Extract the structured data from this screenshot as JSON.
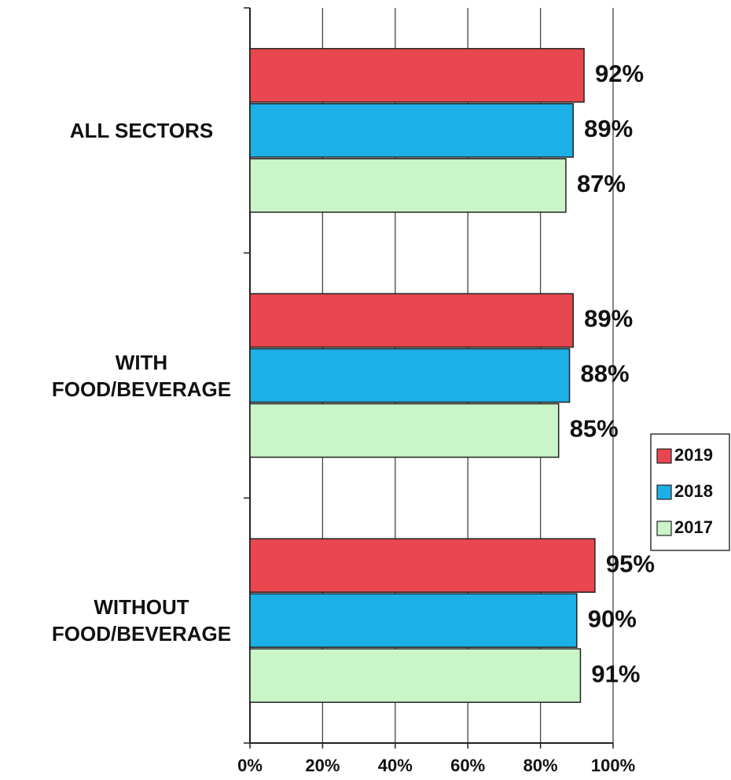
{
  "chart_data": {
    "type": "hbar",
    "categories": [
      "ALL SECTORS",
      "WITH FOOD/BEVERAGE",
      "WITHOUT FOOD/BEVERAGE"
    ],
    "series": [
      {
        "name": "2019",
        "color": "#e8474f",
        "values": [
          92,
          89,
          95
        ],
        "value_labels": [
          "92%",
          "89%",
          "95%"
        ]
      },
      {
        "name": "2018",
        "color": "#1cb0e6",
        "values": [
          89,
          88,
          90
        ],
        "value_labels": [
          "89%",
          "88%",
          "90%"
        ]
      },
      {
        "name": "2017",
        "color": "#c9f5c9",
        "values": [
          87,
          85,
          91
        ],
        "value_labels": [
          "87%",
          "85%",
          "91%"
        ]
      }
    ],
    "xlim": [
      0,
      100
    ],
    "xticks": [
      {
        "value": 0,
        "label": "0%"
      },
      {
        "value": 20,
        "label": "20%"
      },
      {
        "value": 40,
        "label": "40%"
      },
      {
        "value": 60,
        "label": "60%"
      },
      {
        "value": 80,
        "label": "80%"
      },
      {
        "value": 100,
        "label": "100%"
      }
    ],
    "grid": true,
    "legend": "right"
  }
}
